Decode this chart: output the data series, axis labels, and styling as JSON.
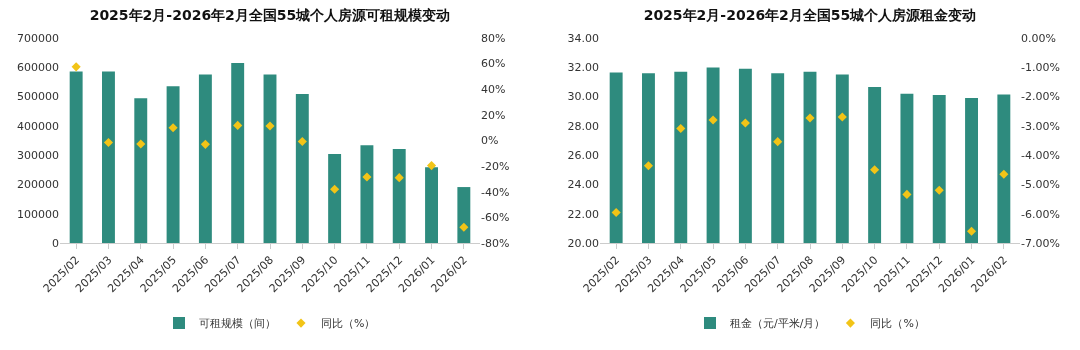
{
  "chart_data": [
    {
      "type": "bar",
      "title": "2025年2月-2026年2月全国55城个人房源可租规模变动",
      "categories": [
        "2025/02",
        "2025/03",
        "2025/04",
        "2025/05",
        "2025/06",
        "2025/07",
        "2025/08",
        "2025/09",
        "2025/10",
        "2025/11",
        "2025/12",
        "2026/01",
        "2026/02"
      ],
      "series": [
        {
          "name": "可租规模（间）",
          "color": "#2e8b7e",
          "values": [
            586000,
            586000,
            494000,
            535000,
            575000,
            615000,
            575000,
            509000,
            304000,
            334000,
            321000,
            259000,
            191000
          ]
        },
        {
          "name": "同比（%）",
          "type": "scatter",
          "axis": "y2",
          "marker": "diamond",
          "color": "#f2c417",
          "values": [
            57.5,
            -1.6,
            -2.7,
            10,
            -3,
            11.8,
            11.3,
            -0.8,
            -38,
            -28.5,
            -29,
            -19.6,
            -67.7
          ]
        }
      ],
      "ylim": [
        0,
        700000
      ],
      "yticks": [
        0,
        100000,
        200000,
        300000,
        400000,
        500000,
        600000,
        700000
      ],
      "y2lim": [
        -80,
        80
      ],
      "y2ticks": [
        {
          "value": -80,
          "label": "-80%"
        },
        {
          "value": -60,
          "label": "-60%"
        },
        {
          "value": -40,
          "label": "-40%"
        },
        {
          "value": -20,
          "label": "-20%"
        },
        {
          "value": 0,
          "label": "0%"
        },
        {
          "value": 20,
          "label": "20%"
        },
        {
          "value": 40,
          "label": "40%"
        },
        {
          "value": 60,
          "label": "60%"
        },
        {
          "value": 80,
          "label": "80%"
        }
      ],
      "grid": false,
      "legend": "bottom"
    },
    {
      "type": "bar",
      "title": "2025年2月-2026年2月全国55城个人房源租金变动",
      "categories": [
        "2025/02",
        "2025/03",
        "2025/04",
        "2025/05",
        "2025/06",
        "2025/07",
        "2025/08",
        "2025/09",
        "2025/10",
        "2025/11",
        "2025/12",
        "2026/01",
        "2026/02"
      ],
      "series": [
        {
          "name": "租金（元/平米/月）",
          "color": "#2e8b7e",
          "values": [
            31.65,
            31.6,
            31.7,
            31.98,
            31.9,
            31.6,
            31.7,
            31.5,
            30.66,
            30.2,
            30.1,
            29.9,
            30.15
          ]
        },
        {
          "name": "同比（%）",
          "type": "scatter",
          "axis": "y2",
          "marker": "diamond",
          "color": "#f2c417",
          "values": [
            -5.96,
            -4.36,
            -3.09,
            -2.8,
            -2.9,
            -3.54,
            -2.73,
            -2.7,
            -4.5,
            -5.34,
            -5.2,
            -6.6,
            -4.65
          ]
        }
      ],
      "ylim": [
        20,
        34
      ],
      "yticks": [
        {
          "value": 20,
          "label": "20.00"
        },
        {
          "value": 22,
          "label": "22.00"
        },
        {
          "value": 24,
          "label": "24.00"
        },
        {
          "value": 26,
          "label": "26.00"
        },
        {
          "value": 28,
          "label": "28.00"
        },
        {
          "value": 30,
          "label": "30.00"
        },
        {
          "value": 32,
          "label": "32.00"
        },
        {
          "value": 34,
          "label": "34.00"
        }
      ],
      "y2lim": [
        -7,
        0
      ],
      "y2ticks": [
        {
          "value": -7,
          "label": "-7.00%"
        },
        {
          "value": -6,
          "label": "-6.00%"
        },
        {
          "value": -5,
          "label": "-5.00%"
        },
        {
          "value": -4,
          "label": "-4.00%"
        },
        {
          "value": -3,
          "label": "-3.00%"
        },
        {
          "value": -2,
          "label": "-2.00%"
        },
        {
          "value": -1,
          "label": "-1.00%"
        },
        {
          "value": 0,
          "label": "0.00%"
        }
      ],
      "grid": false,
      "legend": "bottom"
    }
  ]
}
